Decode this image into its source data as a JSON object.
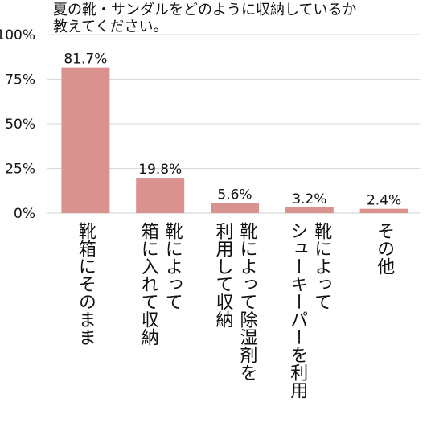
{
  "chart_data": {
    "type": "bar",
    "title_lines": [
      "夏の靴・サンダルをどのように収納しているか",
      "教えてください。"
    ],
    "categories": [
      [
        "靴箱にそのまま"
      ],
      [
        "靴によって",
        "箱に入れて収納"
      ],
      [
        "靴によって除湿剤を",
        "利用して収納"
      ],
      [
        "靴によって",
        "シューキーパーを利用"
      ],
      [
        "その他"
      ]
    ],
    "values": [
      81.7,
      19.8,
      5.6,
      3.2,
      2.4
    ],
    "data_labels": [
      "81.7%",
      "19.8%",
      "5.6%",
      "3.2%",
      "2.4%"
    ],
    "y_ticks": [
      {
        "value": 0,
        "label": "0%"
      },
      {
        "value": 25,
        "label": "25%"
      },
      {
        "value": 50,
        "label": "50%"
      },
      {
        "value": 75,
        "label": "75%"
      },
      {
        "value": 100,
        "label": "100%"
      }
    ],
    "ylim": [
      0,
      100
    ],
    "grid": true,
    "bar_color": "#d9928e",
    "grid_color": "#d9d9d9",
    "axis_color": "#cfcfcf"
  }
}
